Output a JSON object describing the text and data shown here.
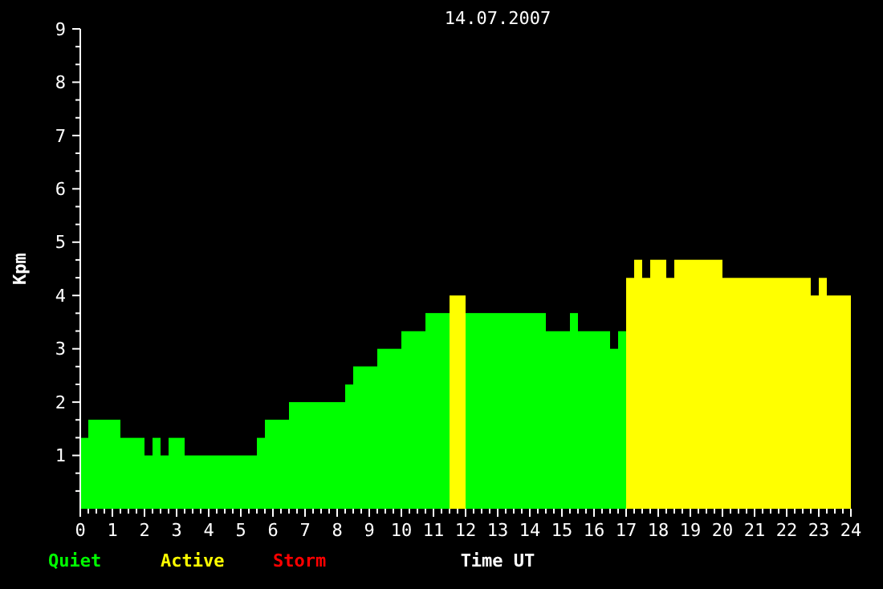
{
  "chart_data": {
    "type": "histogram",
    "title": "14.07.2007",
    "xlabel": "Time UT",
    "ylabel": "Kpm",
    "bins": [
      0,
      0.25,
      1.25,
      2,
      2.25,
      2.5,
      2.75,
      3.25,
      5.5,
      5.75,
      6.5,
      8.25,
      8.5,
      9.25,
      10,
      10.75,
      11.5,
      12,
      14.5,
      15.25,
      15.5,
      16.5,
      16.75,
      17,
      17.25,
      17.5,
      17.75,
      18.25,
      18.5,
      20,
      22.75,
      23,
      23.25,
      24
    ],
    "series": [
      {
        "name": "Quiet",
        "color": "#00ff00",
        "values": [
          1.33,
          1.67,
          1.33,
          1,
          1.33,
          1,
          1.33,
          1,
          1.33,
          1.67,
          2,
          2.33,
          2.67,
          3,
          3.33,
          3.67,
          null,
          3.67,
          3.33,
          3.67,
          3.33,
          3,
          3.33,
          null,
          null,
          null,
          null,
          null,
          null,
          null,
          null,
          null,
          null
        ]
      },
      {
        "name": "Active",
        "color": "#ffff00",
        "values": [
          null,
          null,
          null,
          null,
          null,
          null,
          null,
          null,
          null,
          null,
          null,
          null,
          null,
          null,
          null,
          null,
          4,
          null,
          null,
          null,
          null,
          null,
          null,
          4.33,
          4.67,
          4.33,
          4.67,
          4.33,
          4.67,
          4.33,
          4,
          4.33,
          4
        ]
      }
    ],
    "annotations": [
      "Storm"
    ],
    "xlim": [
      0,
      24
    ],
    "xticks": [
      0,
      {
        "value": 0.25,
        "label": null
      },
      {
        "value": 0.5,
        "label": null
      },
      {
        "value": 0.75,
        "label": null
      },
      1,
      {
        "value": 1.25,
        "label": null
      },
      {
        "value": 1.5,
        "label": null
      },
      {
        "value": 1.75,
        "label": null
      },
      2,
      {
        "value": 2.25,
        "label": null
      },
      {
        "value": 2.5,
        "label": null
      },
      {
        "value": 2.75,
        "label": null
      },
      3,
      {
        "value": 3.25,
        "label": null
      },
      {
        "value": 3.5,
        "label": null
      },
      {
        "value": 3.75,
        "label": null
      },
      4,
      {
        "value": 4.25,
        "label": null
      },
      {
        "value": 4.5,
        "label": null
      },
      {
        "value": 4.75,
        "label": null
      },
      5,
      {
        "value": 5.25,
        "label": null
      },
      {
        "value": 5.5,
        "label": null
      },
      {
        "value": 5.75,
        "label": null
      },
      6,
      {
        "value": 6.25,
        "label": null
      },
      {
        "value": 6.5,
        "label": null
      },
      {
        "value": 6.75,
        "label": null
      },
      7,
      {
        "value": 7.25,
        "label": null
      },
      {
        "value": 7.5,
        "label": null
      },
      {
        "value": 7.75,
        "label": null
      },
      8,
      {
        "value": 8.25,
        "label": null
      },
      {
        "value": 8.5,
        "label": null
      },
      {
        "value": 8.75,
        "label": null
      },
      9,
      {
        "value": 9.25,
        "label": null
      },
      {
        "value": 9.5,
        "label": null
      },
      {
        "value": 9.75,
        "label": null
      },
      10,
      {
        "value": 10.25,
        "label": null
      },
      {
        "value": 10.5,
        "label": null
      },
      {
        "value": 10.75,
        "label": null
      },
      11,
      {
        "value": 11.25,
        "label": null
      },
      {
        "value": 11.5,
        "label": null
      },
      {
        "value": 11.75,
        "label": null
      },
      12,
      {
        "value": 12.25,
        "label": null
      },
      {
        "value": 12.5,
        "label": null
      },
      {
        "value": 12.75,
        "label": null
      },
      13,
      {
        "value": 13.25,
        "label": null
      },
      {
        "value": 13.5,
        "label": null
      },
      {
        "value": 13.75,
        "label": null
      },
      14,
      {
        "value": 14.25,
        "label": null
      },
      {
        "value": 14.5,
        "label": null
      },
      {
        "value": 14.75,
        "label": null
      },
      15,
      {
        "value": 15.25,
        "label": null
      },
      {
        "value": 15.5,
        "label": null
      },
      {
        "value": 15.75,
        "label": null
      },
      16,
      {
        "value": 16.25,
        "label": null
      },
      {
        "value": 16.5,
        "label": null
      },
      {
        "value": 16.75,
        "label": null
      },
      17,
      {
        "value": 17.25,
        "label": null
      },
      {
        "value": 17.5,
        "label": null
      },
      {
        "value": 17.75,
        "label": null
      },
      18,
      {
        "value": 18.25,
        "label": null
      },
      {
        "value": 18.5,
        "label": null
      },
      {
        "value": 18.75,
        "label": null
      },
      19,
      {
        "value": 19.25,
        "label": null
      },
      {
        "value": 19.5,
        "label": null
      },
      {
        "value": 19.75,
        "label": null
      },
      20,
      {
        "value": 20.25,
        "label": null
      },
      {
        "value": 20.5,
        "label": null
      },
      {
        "value": 20.75,
        "label": null
      },
      21,
      {
        "value": 21.25,
        "label": null
      },
      {
        "value": 21.5,
        "label": null
      },
      {
        "value": 21.75,
        "label": null
      },
      22,
      {
        "value": 22.25,
        "label": null
      },
      {
        "value": 22.5,
        "label": null
      },
      {
        "value": 22.75,
        "label": null
      },
      23,
      {
        "value": 23.25,
        "label": null
      },
      {
        "value": 23.5,
        "label": null
      },
      {
        "value": 23.75,
        "label": null
      },
      24
    ],
    "ylim": [
      0,
      9
    ],
    "yticks": [
      {
        "value": 0.333,
        "label": null
      },
      {
        "value": 0.667,
        "label": null
      },
      1,
      {
        "value": 1.333,
        "label": null
      },
      {
        "value": 1.667,
        "label": null
      },
      2,
      {
        "value": 2.333,
        "label": null
      },
      {
        "value": 2.667,
        "label": null
      },
      3,
      {
        "value": 3.333,
        "label": null
      },
      {
        "value": 3.667,
        "label": null
      },
      4,
      {
        "value": 4.333,
        "label": null
      },
      {
        "value": 4.667,
        "label": null
      },
      5,
      {
        "value": 5.333,
        "label": null
      },
      {
        "value": 5.667,
        "label": null
      },
      6,
      {
        "value": 6.333,
        "label": null
      },
      {
        "value": 6.667,
        "label": null
      },
      7,
      {
        "value": 7.333,
        "label": null
      },
      {
        "value": 7.667,
        "label": null
      },
      8,
      {
        "value": 8.333,
        "label": null
      },
      {
        "value": 8.667,
        "label": null
      },
      9
    ],
    "legend": "bottom left",
    "grid": false
  }
}
